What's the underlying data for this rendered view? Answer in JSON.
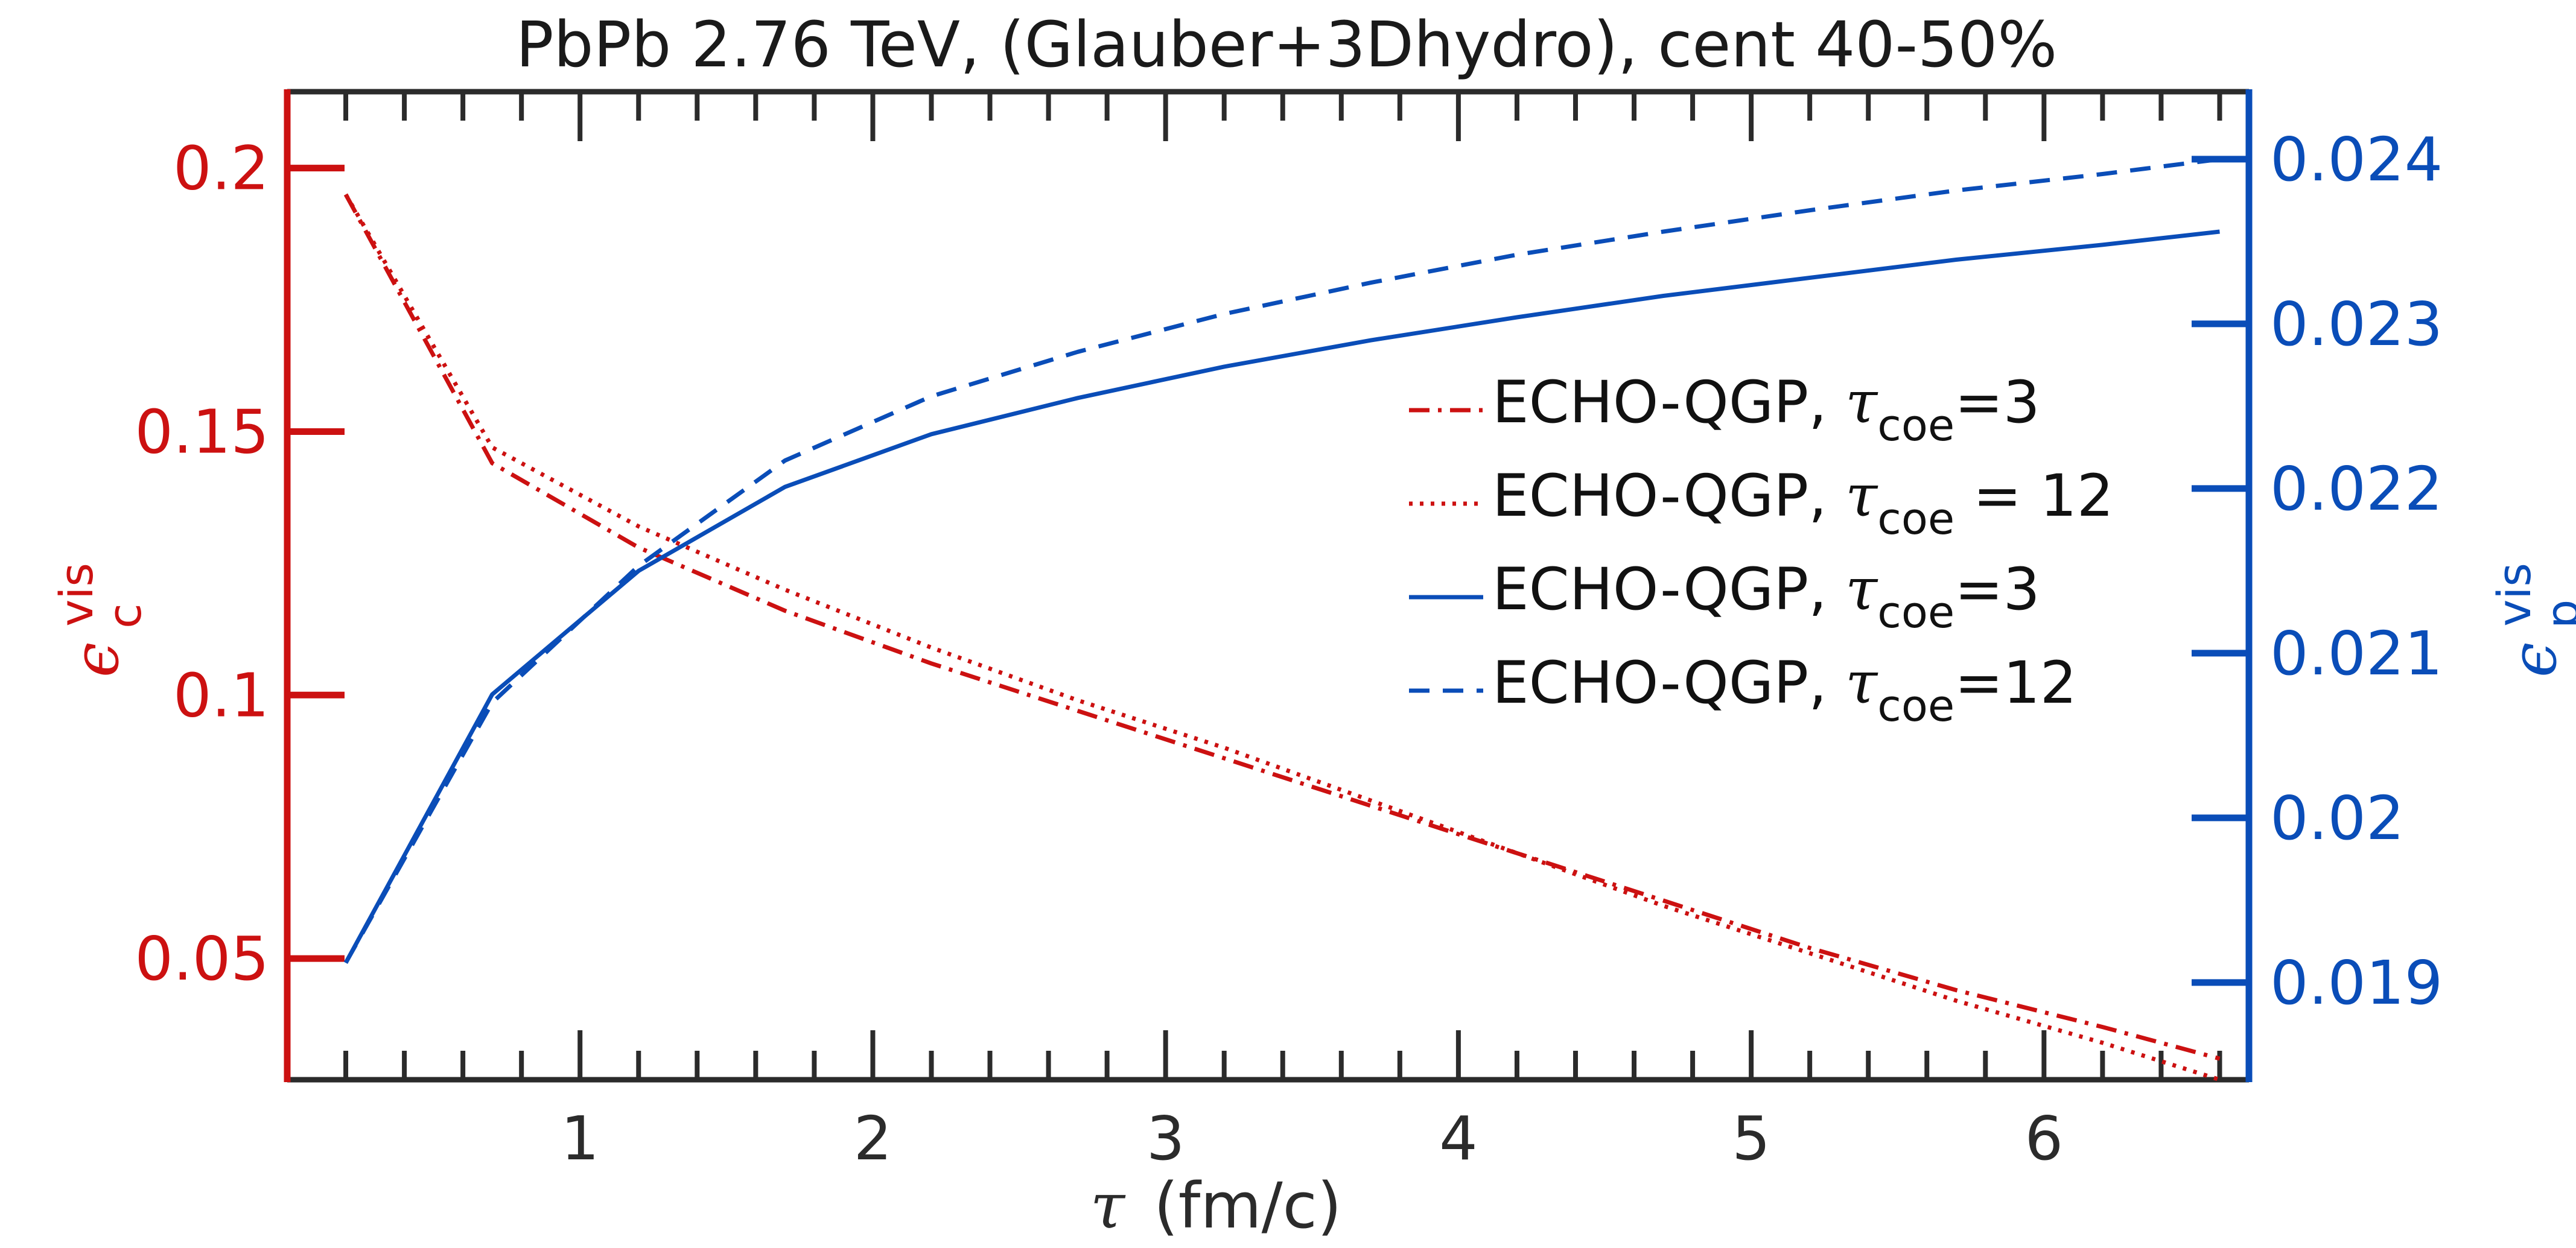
{
  "chart_data": {
    "type": "line",
    "title": "PbPb 2.76 TeV, (Glauber+3Dhydro), cent 40-50%",
    "xlabel": {
      "symbol": "τ",
      "text": "(fm/c)"
    },
    "ylabel_left": {
      "symbol": "ϵ",
      "sub": "c",
      "sup": "vis"
    },
    "ylabel_right": {
      "symbol": "ϵ",
      "sub": "p",
      "sup": "vis"
    },
    "xlim": [
      0,
      6.7
    ],
    "ylim_left": [
      0.027,
      0.2145
    ],
    "ylim_right": [
      0.01841,
      0.02441
    ],
    "x_ticks": [
      1,
      2,
      3,
      4,
      5,
      6
    ],
    "x_tick_labels": [
      "1",
      "2",
      "3",
      "4",
      "5",
      "6"
    ],
    "y_left_ticks": [
      0.05,
      0.1,
      0.15,
      0.2
    ],
    "y_left_tick_labels": [
      "0.05",
      "0.1",
      "0.15",
      "0.2"
    ],
    "y_right_ticks": [
      0.019,
      0.02,
      0.021,
      0.022,
      0.023,
      0.024
    ],
    "y_right_tick_labels": [
      "0.019",
      "0.02",
      "0.021",
      "0.022",
      "0.023",
      "0.024"
    ],
    "grid": false,
    "legend_position": "center-right",
    "colors": {
      "red": "#cc1111",
      "blue": "#0a4db8",
      "frame": "#2b2b2b"
    },
    "series": [
      {
        "name": "ECHO-QGP, τcoe=3",
        "legend": {
          "prefix": "ECHO-QGP, ",
          "symbol": "τ",
          "sub": "coe",
          "suffix": "=3"
        },
        "axis": "left",
        "color": "#cc1111",
        "style": "dashdot",
        "x": [
          0.2,
          0.7,
          1.2,
          1.7,
          2.2,
          2.7,
          3.2,
          3.7,
          4.2,
          4.7,
          5.2,
          5.7,
          6.2,
          6.6
        ],
        "y": [
          0.195,
          0.144,
          0.128,
          0.116,
          0.106,
          0.097,
          0.088,
          0.079,
          0.07,
          0.061,
          0.052,
          0.044,
          0.037,
          0.031
        ]
      },
      {
        "name": "ECHO-QGP, τcoe = 12",
        "legend": {
          "prefix": "ECHO-QGP, ",
          "symbol": "τ",
          "sub": "coe",
          "suffix": " = 12"
        },
        "axis": "left",
        "color": "#cc1111",
        "style": "dotted",
        "x": [
          0.2,
          0.7,
          1.2,
          1.7,
          2.2,
          2.7,
          3.2,
          3.7,
          4.2,
          4.7,
          5.2,
          5.7,
          6.2,
          6.6
        ],
        "y": [
          0.195,
          0.147,
          0.132,
          0.12,
          0.109,
          0.099,
          0.09,
          0.08,
          0.07,
          0.06,
          0.051,
          0.042,
          0.034,
          0.027
        ]
      },
      {
        "name": "ECHO-QGP, τcoe=3",
        "legend": {
          "prefix": "ECHO-QGP, ",
          "symbol": "τ",
          "sub": "coe",
          "suffix": "=3"
        },
        "axis": "right",
        "color": "#0a4db8",
        "style": "solid",
        "x": [
          0.2,
          0.7,
          1.2,
          1.7,
          2.2,
          2.7,
          3.2,
          3.7,
          4.2,
          4.7,
          5.2,
          5.7,
          6.2,
          6.6
        ],
        "y": [
          0.01912,
          0.02075,
          0.0215,
          0.02201,
          0.02233,
          0.02255,
          0.02274,
          0.0229,
          0.02304,
          0.02317,
          0.02328,
          0.02339,
          0.02348,
          0.02356
        ]
      },
      {
        "name": "ECHO-QGP, τcoe=12",
        "legend": {
          "prefix": "ECHO-QGP, ",
          "symbol": "τ",
          "sub": "coe",
          "suffix": "=12"
        },
        "axis": "right",
        "color": "#0a4db8",
        "style": "dashed",
        "x": [
          0.2,
          0.7,
          1.2,
          1.7,
          2.2,
          2.7,
          3.2,
          3.7,
          4.2,
          4.7,
          5.2,
          5.7,
          6.2,
          6.6
        ],
        "y": [
          0.01912,
          0.0207,
          0.02153,
          0.02217,
          0.02256,
          0.02283,
          0.02306,
          0.02325,
          0.02342,
          0.02356,
          0.02369,
          0.02381,
          0.02391,
          0.024
        ]
      }
    ]
  }
}
